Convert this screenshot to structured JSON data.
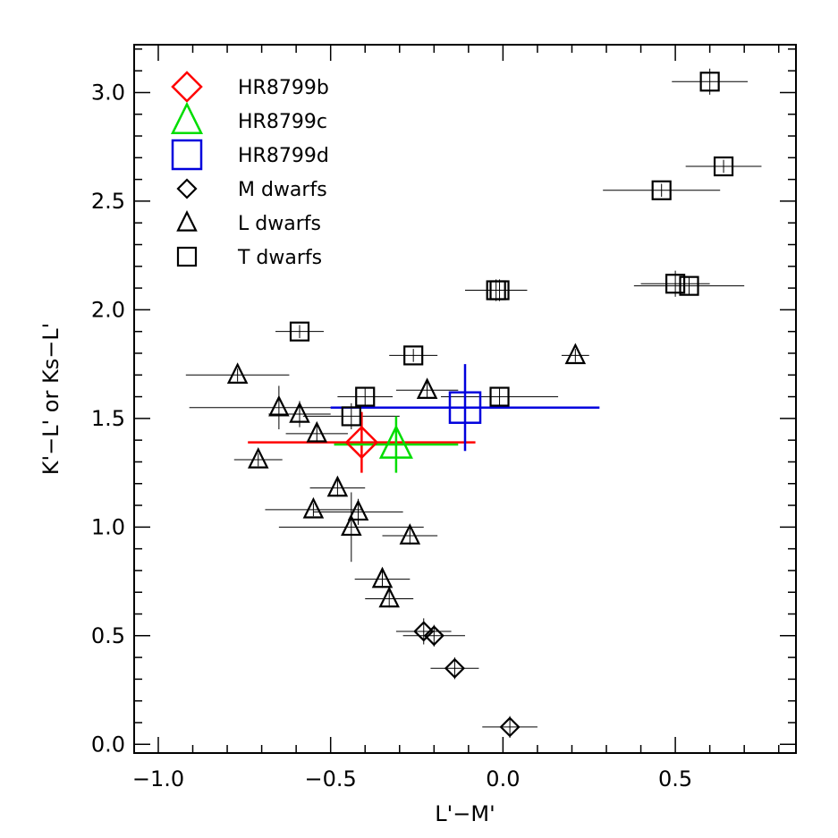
{
  "chart_data": {
    "type": "scatter",
    "xlabel": "L'−M'",
    "ylabel": "K'−L' or Ks−L'",
    "xlim": [
      -1.07,
      0.85
    ],
    "ylim": [
      -0.04,
      3.22
    ],
    "xticks": [
      -1.0,
      -0.5,
      0.0,
      0.5
    ],
    "xtick_labels": [
      "−1.0",
      "−0.5",
      "0.0",
      "0.5"
    ],
    "yticks": [
      0.0,
      0.5,
      1.0,
      1.5,
      2.0,
      2.5,
      3.0
    ],
    "ytick_labels": [
      "0.0",
      "0.5",
      "1.0",
      "1.5",
      "2.0",
      "2.5",
      "3.0"
    ],
    "x_minor_step": 0.1,
    "y_minor_step": 0.1,
    "legend_position": "top-left",
    "series": [
      {
        "name": "HR8799b",
        "marker": "diamond",
        "color": "#ff0000",
        "size": "large",
        "points": [
          {
            "x": -0.41,
            "y": 1.39,
            "xerr": 0.33,
            "yerr": 0.14
          }
        ]
      },
      {
        "name": "HR8799c",
        "marker": "triangle",
        "color": "#00dd00",
        "size": "large",
        "points": [
          {
            "x": -0.31,
            "y": 1.38,
            "xerr": 0.18,
            "yerr": 0.13
          }
        ]
      },
      {
        "name": "HR8799d",
        "marker": "square",
        "color": "#0000dd",
        "size": "large",
        "points": [
          {
            "x": -0.11,
            "y": 1.55,
            "xerr": 0.39,
            "yerr": 0.2
          }
        ]
      },
      {
        "name": "M dwarfs",
        "marker": "diamond",
        "color": "#000000",
        "size": "small",
        "points": [
          {
            "x": -0.23,
            "y": 0.52,
            "xerr": 0.08,
            "yerr": 0.06
          },
          {
            "x": -0.2,
            "y": 0.5,
            "xerr": 0.09,
            "yerr": 0.05
          },
          {
            "x": -0.14,
            "y": 0.35,
            "xerr": 0.07,
            "yerr": 0.05
          },
          {
            "x": 0.02,
            "y": 0.08,
            "xerr": 0.08,
            "yerr": 0.05
          }
        ]
      },
      {
        "name": "L dwarfs",
        "marker": "triangle",
        "color": "#000000",
        "size": "small",
        "points": [
          {
            "x": -0.77,
            "y": 1.7,
            "xerr": 0.15,
            "yerr": 0.03
          },
          {
            "x": -0.65,
            "y": 1.55,
            "xerr": 0.26,
            "yerr": 0.1
          },
          {
            "x": -0.59,
            "y": 1.52,
            "xerr": 0.09,
            "yerr": 0.06
          },
          {
            "x": -0.54,
            "y": 1.43,
            "xerr": 0.09,
            "yerr": 0.04
          },
          {
            "x": -0.71,
            "y": 1.31,
            "xerr": 0.07,
            "yerr": 0.03
          },
          {
            "x": -0.48,
            "y": 1.18,
            "xerr": 0.08,
            "yerr": 0.04
          },
          {
            "x": -0.55,
            "y": 1.08,
            "xerr": 0.14,
            "yerr": 0.03
          },
          {
            "x": -0.42,
            "y": 1.07,
            "xerr": 0.13,
            "yerr": 0.06
          },
          {
            "x": -0.44,
            "y": 1.0,
            "xerr": 0.21,
            "yerr": 0.16
          },
          {
            "x": -0.27,
            "y": 0.96,
            "xerr": 0.08,
            "yerr": 0.04
          },
          {
            "x": -0.35,
            "y": 0.76,
            "xerr": 0.08,
            "yerr": 0.04
          },
          {
            "x": -0.33,
            "y": 0.67,
            "xerr": 0.07,
            "yerr": 0.04
          },
          {
            "x": -0.22,
            "y": 1.63,
            "xerr": 0.09,
            "yerr": 0.04
          },
          {
            "x": 0.21,
            "y": 1.79,
            "xerr": 0.04,
            "yerr": 0.03
          }
        ]
      },
      {
        "name": "T dwarfs",
        "marker": "square",
        "color": "#000000",
        "size": "small",
        "points": [
          {
            "x": 0.6,
            "y": 3.05,
            "xerr": 0.11,
            "yerr": 0.06
          },
          {
            "x": 0.64,
            "y": 2.66,
            "xerr": 0.11,
            "yerr": 0.03
          },
          {
            "x": 0.46,
            "y": 2.55,
            "xerr": 0.17,
            "yerr": 0.03
          },
          {
            "x": 0.5,
            "y": 2.12,
            "xerr": 0.1,
            "yerr": 0.06
          },
          {
            "x": 0.54,
            "y": 2.11,
            "xerr": 0.16,
            "yerr": 0.04
          },
          {
            "x": -0.01,
            "y": 2.09,
            "xerr": 0.08,
            "yerr": 0.05
          },
          {
            "x": -0.02,
            "y": 2.09,
            "xerr": 0.09,
            "yerr": 0.05
          },
          {
            "x": -0.59,
            "y": 1.9,
            "xerr": 0.07,
            "yerr": 0.03
          },
          {
            "x": -0.26,
            "y": 1.79,
            "xerr": 0.07,
            "yerr": 0.03
          },
          {
            "x": -0.4,
            "y": 1.6,
            "xerr": 0.08,
            "yerr": 0.04
          },
          {
            "x": -0.44,
            "y": 1.51,
            "xerr": 0.14,
            "yerr": 0.06
          },
          {
            "x": -0.01,
            "y": 1.6,
            "xerr": 0.17,
            "yerr": 0.04
          }
        ]
      }
    ]
  }
}
